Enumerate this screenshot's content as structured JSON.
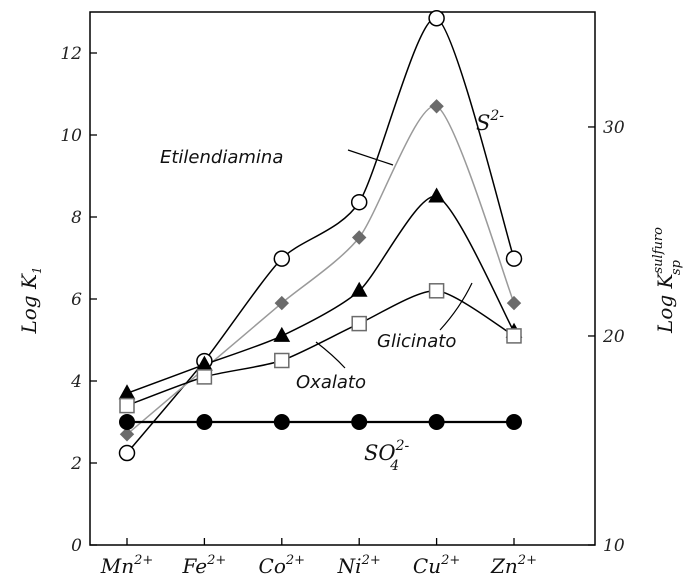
{
  "chart_data": {
    "type": "line",
    "categories": [
      "Mn",
      "Fe",
      "Co",
      "Ni",
      "Cu",
      "Zn"
    ],
    "category_charges": [
      "2+",
      "2+",
      "2+",
      "2+",
      "2+",
      "2+"
    ],
    "ylabel": {
      "main": "Log K",
      "sub": "1"
    },
    "ylabel_right": {
      "main": "Log K",
      "sup": "sulfuro",
      "sub": "sp"
    },
    "ylim": [
      0,
      13
    ],
    "yticks": [
      0,
      2,
      4,
      6,
      8,
      10,
      12
    ],
    "ylim_right": [
      10,
      35.5
    ],
    "yticks_right": [
      10,
      20,
      30
    ],
    "grid": false,
    "series": [
      {
        "name": "S2-",
        "axis": "right",
        "marker": "open-circle",
        "line_color": "#000000",
        "values": [
          14.4,
          18.8,
          23.7,
          26.4,
          35.2,
          23.7
        ]
      },
      {
        "name": "Etilendiamina",
        "axis": "left",
        "marker": "diamond",
        "line_color": "#9a9a9a",
        "marker_color": "#6b6b6b",
        "values": [
          2.7,
          4.3,
          5.9,
          7.5,
          10.7,
          5.9
        ]
      },
      {
        "name": "Glicinato",
        "axis": "left",
        "marker": "filled-triangle",
        "line_color": "#000000",
        "values": [
          3.7,
          4.4,
          5.1,
          6.2,
          8.5,
          5.2
        ]
      },
      {
        "name": "Oxalato",
        "axis": "left",
        "marker": "open-square",
        "line_color": "#000000",
        "marker_color": "#6b6b6b",
        "values": [
          3.4,
          4.1,
          4.5,
          5.4,
          6.2,
          5.1
        ]
      },
      {
        "name": "SO4 2-",
        "axis": "left",
        "marker": "filled-circle",
        "line_color": "#000000",
        "values": [
          3.0,
          3.0,
          3.0,
          3.0,
          3.0,
          3.0
        ]
      }
    ],
    "annotations": {
      "etilendiamina": "Etilendiamina",
      "glicinato": "Glicinato",
      "oxalato": "Oxalato",
      "sulfide_label": {
        "base": "S",
        "sup": "2-"
      },
      "sulfate_label": {
        "base": "SO",
        "sup": "2-",
        "sub": "4"
      }
    }
  }
}
